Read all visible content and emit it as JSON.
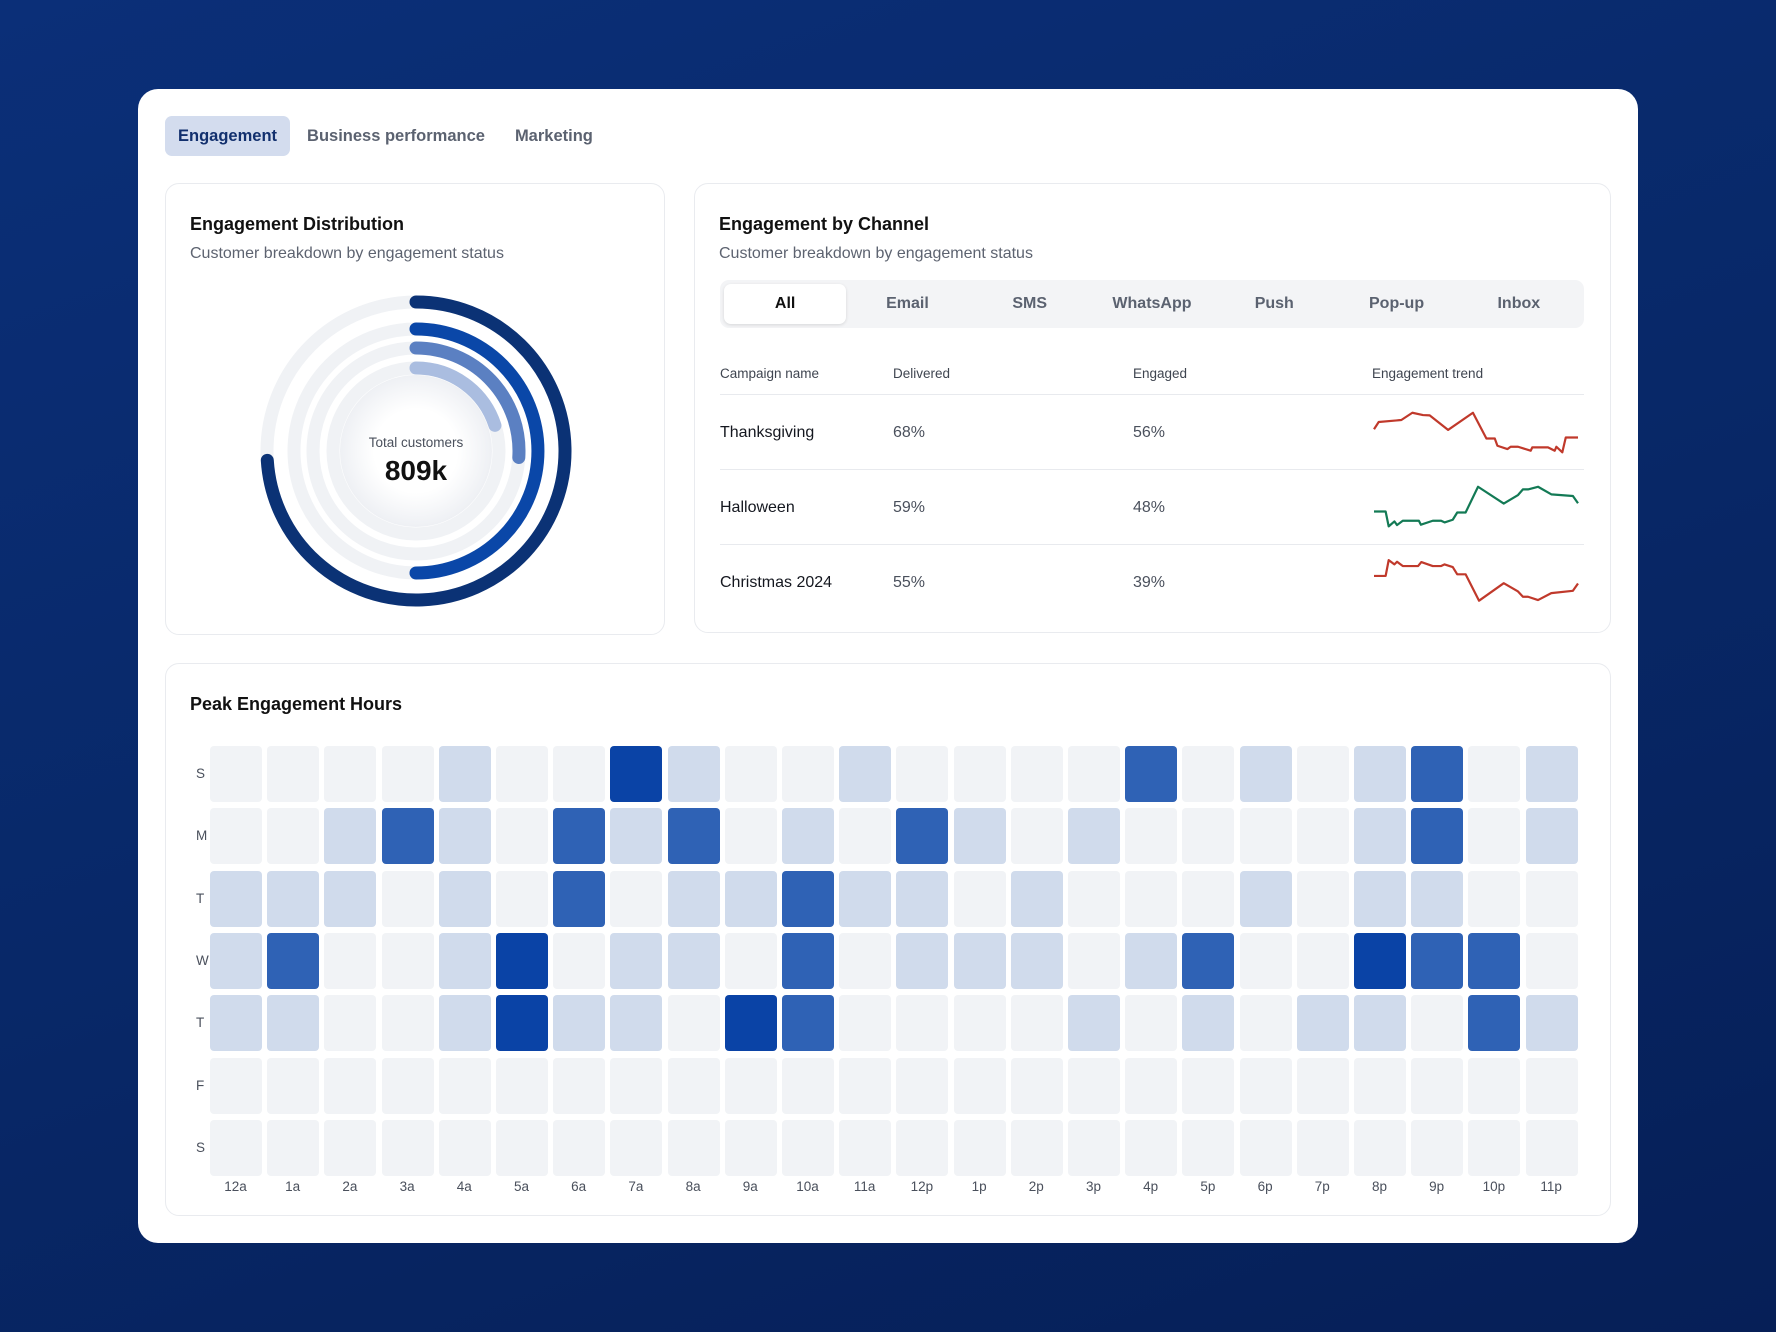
{
  "tabs": [
    {
      "label": "Engagement",
      "active": true
    },
    {
      "label": "Business performance",
      "active": false
    },
    {
      "label": "Marketing",
      "active": false
    }
  ],
  "distribution": {
    "title": "Engagement Distribution",
    "subtitle": "Customer breakdown by engagement status",
    "center_label": "Total customers",
    "center_value": "809k",
    "rings": [
      {
        "fraction": 0.74,
        "color": "#0b3275"
      },
      {
        "fraction": 0.5,
        "color": "#0a47a8"
      },
      {
        "fraction": 0.26,
        "color": "#5b80c2"
      },
      {
        "fraction": 0.2,
        "color": "#aabde0"
      }
    ]
  },
  "channel": {
    "title": "Engagement by Channel",
    "subtitle": "Customer breakdown by engagement status",
    "filters": [
      "All",
      "Email",
      "SMS",
      "WhatsApp",
      "Push",
      "Pop-up",
      "Inbox"
    ],
    "active_filter": "All",
    "columns": [
      "Campaign name",
      "Delivered",
      "Engaged",
      "Engagement trend"
    ],
    "rows": [
      {
        "name": "Thanksgiving",
        "delivered": "68%",
        "engaged": "56%",
        "trend_color": "#c0392b",
        "trend": [
          [
            0,
            75
          ],
          [
            2.3,
            97
          ],
          [
            13.4,
            103
          ],
          [
            18.8,
            125
          ],
          [
            24,
            118
          ],
          [
            27.3,
            117
          ],
          [
            36.3,
            73
          ],
          [
            48.5,
            125
          ],
          [
            55.1,
            47
          ],
          [
            59.2,
            47
          ],
          [
            60.5,
            25
          ],
          [
            65.4,
            15
          ],
          [
            67,
            22
          ],
          [
            70.6,
            22
          ],
          [
            76.8,
            10
          ],
          [
            77.6,
            20
          ],
          [
            85.3,
            20
          ],
          [
            88.6,
            10
          ],
          [
            89.4,
            22
          ],
          [
            92.3,
            5
          ],
          [
            94,
            50
          ],
          [
            100,
            50
          ]
        ]
      },
      {
        "name": "Halloween",
        "delivered": "59%",
        "engaged": "48%",
        "trend_color": "#137a55",
        "trend": [
          [
            0,
            53
          ],
          [
            5.7,
            53
          ],
          [
            7.2,
            8
          ],
          [
            10,
            23
          ],
          [
            11.3,
            12
          ],
          [
            14.1,
            25
          ],
          [
            22,
            25
          ],
          [
            23,
            13
          ],
          [
            28.8,
            25
          ],
          [
            32.9,
            25
          ],
          [
            34.6,
            20
          ],
          [
            38.6,
            28
          ],
          [
            40.8,
            50
          ],
          [
            44.9,
            50
          ],
          [
            51,
            128
          ],
          [
            63.6,
            77
          ],
          [
            70.6,
            103
          ],
          [
            73,
            120
          ],
          [
            75.5,
            120
          ],
          [
            80.4,
            128
          ],
          [
            86.9,
            105
          ],
          [
            97.5,
            100
          ],
          [
            100,
            78
          ]
        ]
      },
      {
        "name": "Christmas 2024",
        "delivered": "55%",
        "engaged": "39%",
        "trend_color": "#c0392b",
        "trend": [
          [
            0,
            85
          ],
          [
            5.7,
            85
          ],
          [
            7.2,
            133
          ],
          [
            10,
            120
          ],
          [
            11.3,
            128
          ],
          [
            14.1,
            115
          ],
          [
            21.6,
            115
          ],
          [
            23.2,
            127
          ],
          [
            28.8,
            115
          ],
          [
            32.9,
            115
          ],
          [
            34.6,
            120
          ],
          [
            38.6,
            112
          ],
          [
            40.8,
            90
          ],
          [
            44.9,
            90
          ],
          [
            51.5,
            10
          ],
          [
            63.6,
            63
          ],
          [
            70.6,
            38
          ],
          [
            73,
            22
          ],
          [
            75.5,
            22
          ],
          [
            80.4,
            12
          ],
          [
            86.9,
            33
          ],
          [
            97.5,
            40
          ],
          [
            100,
            62
          ]
        ]
      }
    ]
  },
  "chart_data": {
    "type": "heatmap",
    "title": "Peak Engagement Hours",
    "y": [
      "S",
      "M",
      "T",
      "W",
      "T",
      "F",
      "S"
    ],
    "x": [
      "12a",
      "1a",
      "2a",
      "3a",
      "4a",
      "5a",
      "6a",
      "7a",
      "8a",
      "9a",
      "10a",
      "11a",
      "12p",
      "1p",
      "2p",
      "3p",
      "4p",
      "5p",
      "6p",
      "7p",
      "8p",
      "9p",
      "10p",
      "11p"
    ],
    "scale": [
      "#f1f3f6",
      "#d0dbec",
      "#2f62b5",
      "#0a43a6"
    ],
    "values": [
      [
        0,
        0,
        0,
        0,
        1,
        0,
        0,
        3,
        1,
        0,
        0,
        1,
        0,
        0,
        0,
        0,
        2,
        0,
        1,
        0,
        1,
        2,
        0,
        1
      ],
      [
        0,
        0,
        1,
        2,
        1,
        0,
        2,
        1,
        2,
        0,
        1,
        0,
        2,
        1,
        0,
        1,
        0,
        0,
        0,
        0,
        1,
        2,
        0,
        1
      ],
      [
        1,
        1,
        1,
        0,
        1,
        0,
        2,
        0,
        1,
        1,
        2,
        1,
        1,
        0,
        1,
        0,
        0,
        0,
        1,
        0,
        1,
        1,
        0,
        0
      ],
      [
        1,
        2,
        0,
        0,
        1,
        3,
        0,
        1,
        1,
        0,
        2,
        0,
        1,
        1,
        1,
        0,
        1,
        2,
        0,
        0,
        3,
        2,
        2,
        0
      ],
      [
        1,
        1,
        0,
        0,
        1,
        3,
        1,
        1,
        0,
        3,
        2,
        0,
        0,
        0,
        0,
        1,
        0,
        1,
        0,
        1,
        1,
        0,
        2,
        1
      ],
      [
        0,
        0,
        0,
        0,
        0,
        0,
        0,
        0,
        0,
        0,
        0,
        0,
        0,
        0,
        0,
        0,
        0,
        0,
        0,
        0,
        0,
        0,
        0,
        0
      ],
      [
        0,
        0,
        0,
        0,
        0,
        0,
        0,
        0,
        0,
        0,
        0,
        0,
        0,
        0,
        0,
        0,
        0,
        0,
        0,
        0,
        0,
        0,
        0,
        0
      ]
    ]
  }
}
